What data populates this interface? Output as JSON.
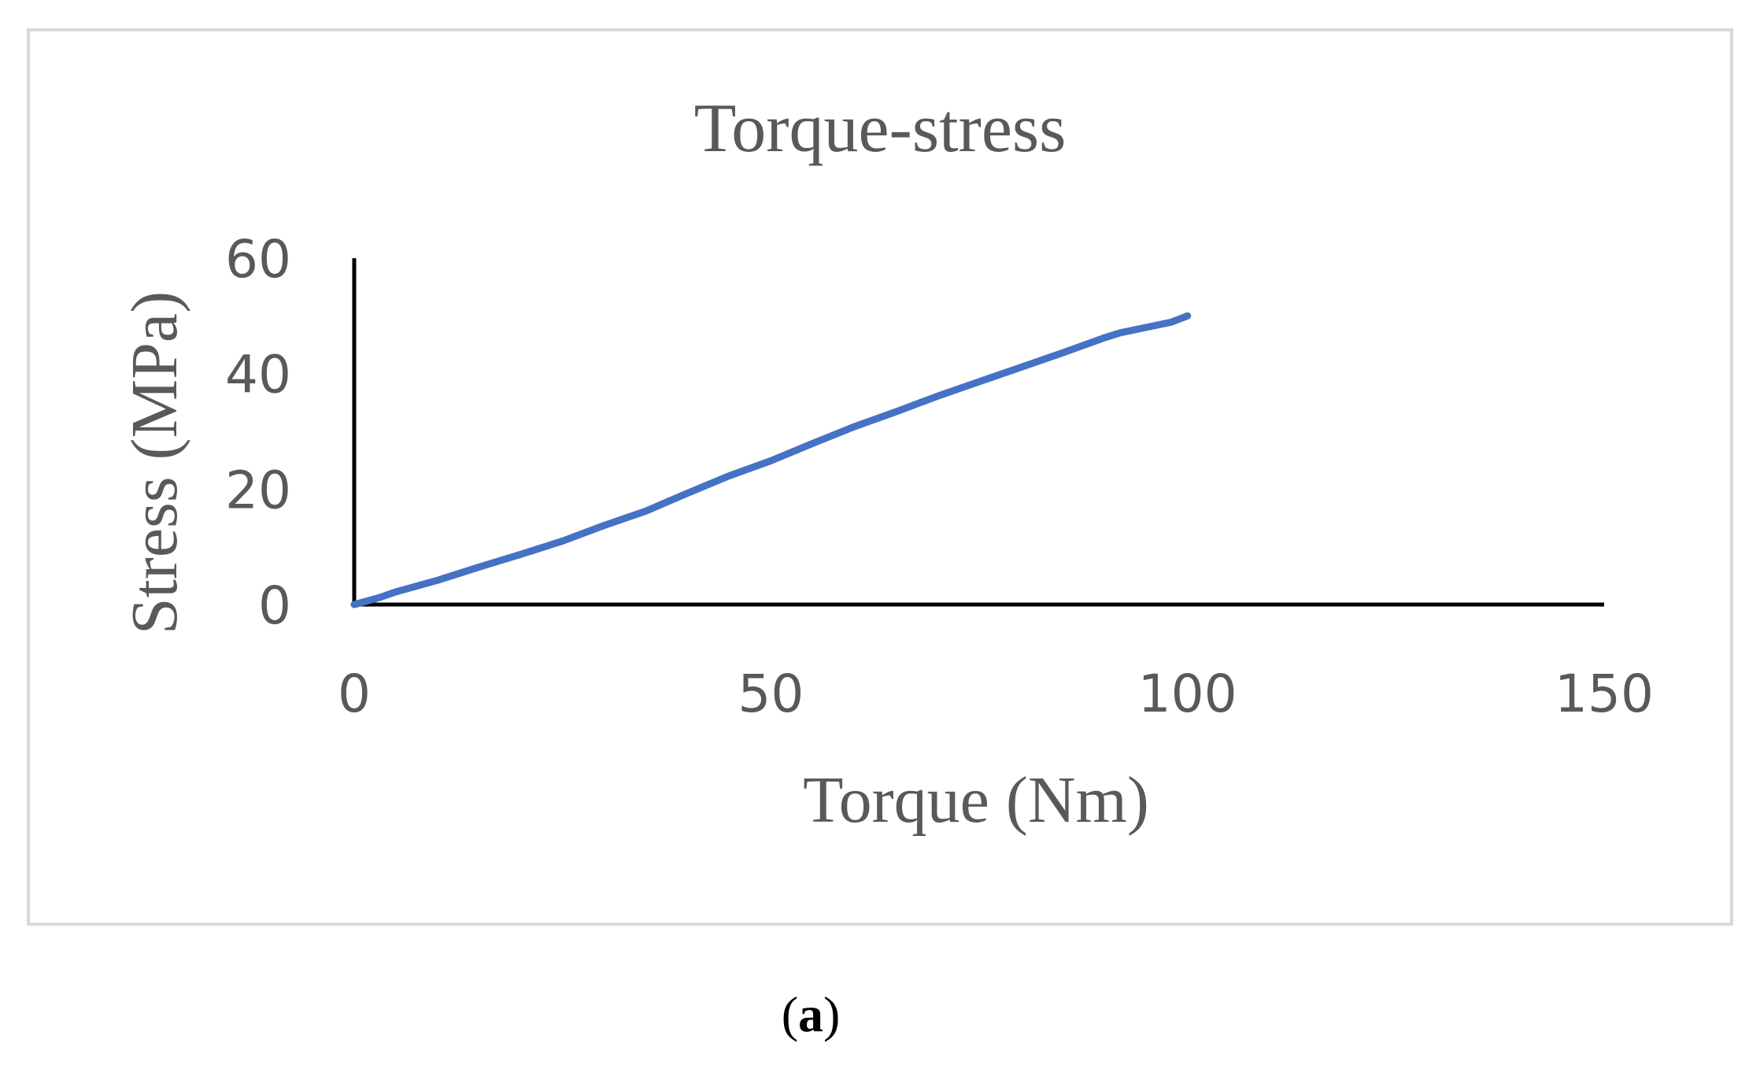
{
  "chart_data": {
    "type": "line",
    "title": "Torque-stress",
    "xlabel": "Torque (Nm)",
    "ylabel": "Stress (MPa)",
    "xlim": [
      0,
      150
    ],
    "ylim": [
      0,
      60
    ],
    "xticks": [
      0,
      50,
      100,
      150
    ],
    "yticks": [
      0,
      20,
      40,
      60
    ],
    "grid": false,
    "legend": "none",
    "series": [
      {
        "color": "#4472c4",
        "x": [
          0,
          3,
          5,
          10,
          15,
          20,
          25,
          30,
          35,
          40,
          45,
          50,
          55,
          60,
          65,
          70,
          75,
          80,
          85,
          90,
          92,
          95,
          98,
          100
        ],
        "y": [
          0,
          1.2,
          2.2,
          4.2,
          6.5,
          8.7,
          11.0,
          13.7,
          16.2,
          19.3,
          22.3,
          24.9,
          27.9,
          30.8,
          33.4,
          36.1,
          38.6,
          41.1,
          43.6,
          46.2,
          47.1,
          48.0,
          48.9,
          50.0
        ]
      }
    ]
  },
  "caption": {
    "open_paren": "(",
    "letter": "a",
    "close_paren": ")"
  }
}
